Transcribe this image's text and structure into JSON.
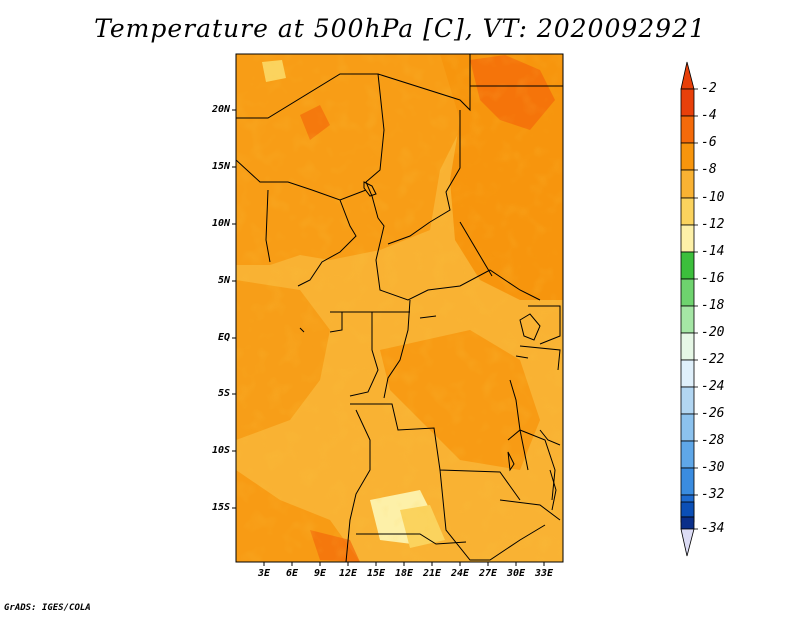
{
  "title": "Temperature at 500hPa [C], VT: 2020092921",
  "footer": "GrADS: IGES/COLA",
  "map": {
    "lat_labels": [
      "20N",
      "15N",
      "10N",
      "5N",
      "EQ",
      "5S",
      "10S",
      "15S"
    ],
    "lon_labels": [
      "3E",
      "6E",
      "9E",
      "12E",
      "15E",
      "18E",
      "21E",
      "24E",
      "27E",
      "30E",
      "33E"
    ]
  },
  "colorbar": {
    "labels": [
      "-2",
      "-4",
      "-6",
      "-8",
      "-10",
      "-12",
      "-14",
      "-16",
      "-18",
      "-20",
      "-22",
      "-24",
      "-26",
      "-28",
      "-30",
      "-32",
      "-34"
    ],
    "colors": [
      "#e8400a",
      "#f46a0a",
      "#f7950d",
      "#f9b233",
      "#fbd35e",
      "#fdf0a8",
      "#3cbf3c",
      "#6ed36e",
      "#a5e6a5",
      "#e6f7e6",
      "#e0f0fb",
      "#b2d6f2",
      "#8cc2ee",
      "#5fa7e8",
      "#3a8ce0",
      "#1e6bd0",
      "#0b4fb6",
      "#0a2f8a",
      "#0a1660"
    ],
    "top_arrow_color": "#e8400a",
    "bottom_arrow_color": "#dcdcf5"
  },
  "legend_colors": {
    "warm_base": "#f9b233",
    "warm_mid": "#f7950d",
    "warm_dark": "#f46a0a",
    "warm_light": "#fbd35e",
    "warm_pale": "#fdf0a8"
  }
}
